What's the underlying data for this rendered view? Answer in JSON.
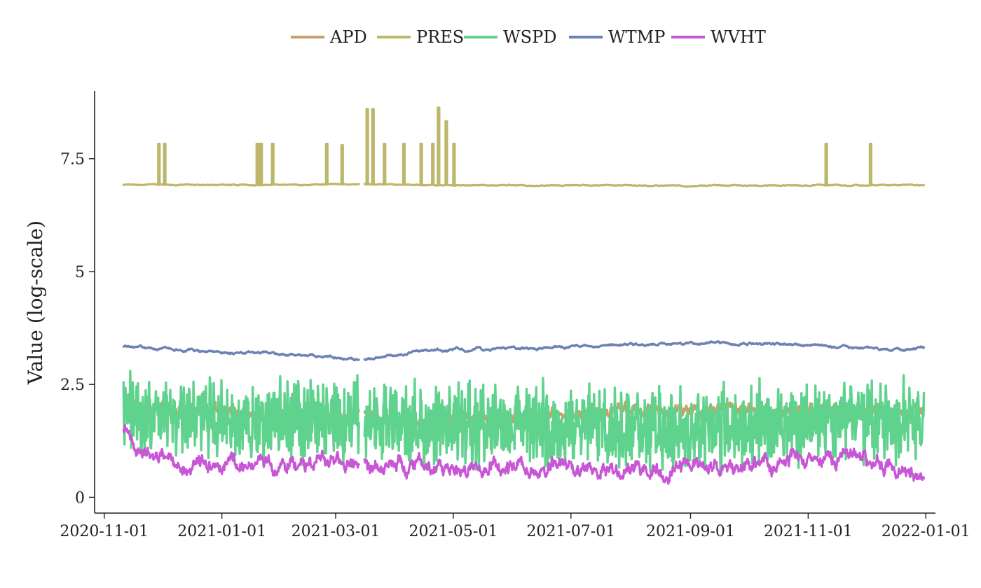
{
  "chart_data": {
    "type": "line",
    "title": "",
    "xlabel": "",
    "ylabel": "Value (log-scale)",
    "grid": false,
    "legend_placement": "top-center",
    "x_type": "date",
    "xlim": [
      "2020-10-27",
      "2022-01-06"
    ],
    "ylim": [
      -0.35,
      9.0
    ],
    "x_ticks": [
      "2020-11-01",
      "2021-01-01",
      "2021-03-01",
      "2021-05-01",
      "2021-07-01",
      "2021-09-01",
      "2021-11-01",
      "2022-01-01"
    ],
    "y_ticks": [
      0,
      2.5,
      5,
      7.5
    ],
    "y_tick_labels": [
      "0",
      "2.5",
      "5",
      "7.5"
    ],
    "data_range": [
      "2020-11-11",
      "2021-12-31"
    ],
    "gap": [
      "2021-03-13",
      "2021-03-16"
    ],
    "series": [
      {
        "name": "APD",
        "color": "#c9a06a",
        "baseline": [
          [
            "2020-11-11",
            2.05
          ],
          [
            "2020-12-01",
            1.95
          ],
          [
            "2021-01-01",
            1.85
          ],
          [
            "2021-02-01",
            1.8
          ],
          [
            "2021-03-01",
            1.8
          ],
          [
            "2021-04-01",
            1.75
          ],
          [
            "2021-05-01",
            1.7
          ],
          [
            "2021-06-01",
            1.75
          ],
          [
            "2021-07-01",
            1.85
          ],
          [
            "2021-08-01",
            1.9
          ],
          [
            "2021-09-01",
            1.95
          ],
          [
            "2021-10-01",
            1.9
          ],
          [
            "2021-11-01",
            1.95
          ],
          [
            "2021-12-01",
            1.95
          ],
          [
            "2021-12-31",
            1.9
          ]
        ],
        "variation": 0.25
      },
      {
        "name": "PRES",
        "color": "#bdb76b",
        "baseline": [
          [
            "2020-11-11",
            6.92
          ],
          [
            "2021-03-01",
            6.93
          ],
          [
            "2021-06-01",
            6.91
          ],
          [
            "2021-09-01",
            6.9
          ],
          [
            "2021-12-31",
            6.92
          ]
        ],
        "variation": 0.01,
        "spikes": [
          [
            "2020-11-29",
            7.83
          ],
          [
            "2020-12-02",
            7.83
          ],
          [
            "2021-01-19",
            7.83
          ],
          [
            "2021-01-20",
            7.83
          ],
          [
            "2021-01-21",
            7.83
          ],
          [
            "2021-01-27",
            7.83
          ],
          [
            "2021-02-24",
            7.83
          ],
          [
            "2021-03-04",
            7.8
          ],
          [
            "2021-03-17",
            8.6
          ],
          [
            "2021-03-20",
            8.6
          ],
          [
            "2021-03-26",
            7.83
          ],
          [
            "2021-04-05",
            7.83
          ],
          [
            "2021-04-14",
            7.83
          ],
          [
            "2021-04-20",
            7.83
          ],
          [
            "2021-04-23",
            8.63
          ],
          [
            "2021-04-27",
            8.33
          ],
          [
            "2021-05-01",
            7.83
          ],
          [
            "2021-11-10",
            7.83
          ],
          [
            "2021-12-03",
            7.83
          ]
        ]
      },
      {
        "name": "WSPD",
        "color": "#5fd38d",
        "baseline": [
          [
            "2020-11-11",
            1.9
          ],
          [
            "2021-01-01",
            1.7
          ],
          [
            "2021-03-01",
            1.75
          ],
          [
            "2021-05-01",
            1.6
          ],
          [
            "2021-07-01",
            1.55
          ],
          [
            "2021-09-01",
            1.5
          ],
          [
            "2021-11-01",
            1.7
          ],
          [
            "2021-12-31",
            1.6
          ]
        ],
        "variation": 1.1,
        "range": [
          0.1,
          2.8
        ]
      },
      {
        "name": "WTMP",
        "color": "#6b82b3",
        "baseline": [
          [
            "2020-11-11",
            3.33
          ],
          [
            "2020-12-01",
            3.3
          ],
          [
            "2021-01-01",
            3.22
          ],
          [
            "2021-02-01",
            3.17
          ],
          [
            "2021-02-20",
            3.15
          ],
          [
            "2021-03-10",
            3.05
          ],
          [
            "2021-03-25",
            3.1
          ],
          [
            "2021-04-15",
            3.24
          ],
          [
            "2021-05-15",
            3.28
          ],
          [
            "2021-06-15",
            3.3
          ],
          [
            "2021-07-15",
            3.36
          ],
          [
            "2021-08-15",
            3.4
          ],
          [
            "2021-09-15",
            3.42
          ],
          [
            "2021-10-15",
            3.39
          ],
          [
            "2021-11-15",
            3.34
          ],
          [
            "2021-12-15",
            3.27
          ],
          [
            "2021-12-31",
            3.3
          ]
        ],
        "variation": 0.03
      },
      {
        "name": "WVHT",
        "color": "#c857d6",
        "baseline": [
          [
            "2020-11-11",
            1.45
          ],
          [
            "2020-11-20",
            1.0
          ],
          [
            "2020-12-15",
            0.7
          ],
          [
            "2021-01-01",
            0.8
          ],
          [
            "2021-02-01",
            0.7
          ],
          [
            "2021-03-01",
            0.75
          ],
          [
            "2021-04-01",
            0.75
          ],
          [
            "2021-05-01",
            0.6
          ],
          [
            "2021-06-01",
            0.65
          ],
          [
            "2021-07-01",
            0.7
          ],
          [
            "2021-08-01",
            0.55
          ],
          [
            "2021-09-01",
            0.75
          ],
          [
            "2021-10-01",
            0.7
          ],
          [
            "2021-11-01",
            0.9
          ],
          [
            "2021-12-01",
            0.85
          ],
          [
            "2021-12-31",
            0.35
          ]
        ],
        "variation": 0.25,
        "range": [
          0.25,
          1.6
        ]
      }
    ]
  }
}
